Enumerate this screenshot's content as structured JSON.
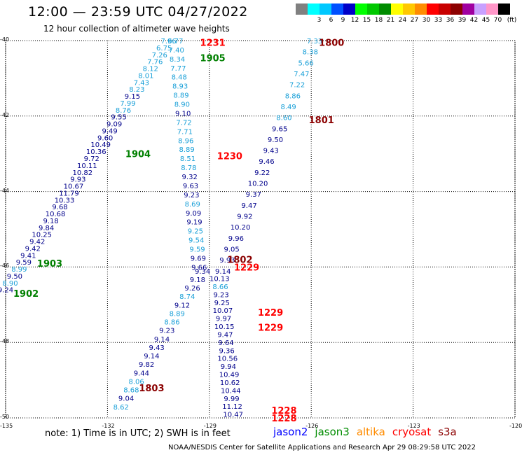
{
  "title": "12:00 — 23:59 UTC 04/27/2022",
  "subtitle": "12 hour collection of altimeter wave heights",
  "colorbar": {
    "unit": "(ft)",
    "bins": [
      {
        "label": "",
        "color": "#808080"
      },
      {
        "label": "3",
        "color": "#00ffff"
      },
      {
        "label": "6",
        "color": "#00c8ff"
      },
      {
        "label": "9",
        "color": "#0050ff"
      },
      {
        "label": "12",
        "color": "#0000c8"
      },
      {
        "label": "15",
        "color": "#00ff00"
      },
      {
        "label": "18",
        "color": "#00c800"
      },
      {
        "label": "21",
        "color": "#008c00"
      },
      {
        "label": "24",
        "color": "#ffff00"
      },
      {
        "label": "27",
        "color": "#ffc800"
      },
      {
        "label": "30",
        "color": "#ff8c00"
      },
      {
        "label": "33",
        "color": "#ff0000"
      },
      {
        "label": "36",
        "color": "#c80000"
      },
      {
        "label": "39",
        "color": "#8c0000"
      },
      {
        "label": "42",
        "color": "#a000a0"
      },
      {
        "label": "45",
        "color": "#c8a0ff"
      },
      {
        "label": "70",
        "color": "#ff96c8"
      },
      {
        "label": "",
        "color": "#000000"
      }
    ]
  },
  "axes": {
    "x_ticks": [
      "-135",
      "-132",
      "-129",
      "-126",
      "-123",
      "-120"
    ],
    "y_ticks": [
      "-40",
      "-42",
      "-44",
      "-46",
      "-48",
      "-50"
    ]
  },
  "satellites": [
    {
      "name": "jason2",
      "color": "#0000ff"
    },
    {
      "name": "jason3",
      "color": "#008c00"
    },
    {
      "name": "altika",
      "color": "#ff8c00"
    },
    {
      "name": "cryosat",
      "color": "#ff0000"
    },
    {
      "name": "s3a",
      "color": "#8c0000"
    }
  ],
  "colors": {
    "dark_blue": "#00008b",
    "light_blue": "#1aa0d8",
    "green": "#008000",
    "red": "#ff0000",
    "maroon": "#8b0000"
  },
  "tracks": [
    {
      "lon_start": -135.0,
      "lat_start": -46.6,
      "lon_end": -130.2,
      "lat_end": -40.0,
      "values": [
        {
          "v": "9.24",
          "c": "dark_blue"
        },
        {
          "v": "8.90",
          "c": "light_blue"
        },
        {
          "v": "9.50",
          "c": "dark_blue"
        },
        {
          "v": "8.99",
          "c": "light_blue"
        },
        {
          "v": "9.59",
          "c": "dark_blue"
        },
        {
          "v": "9.41",
          "c": "dark_blue"
        },
        {
          "v": "9.42",
          "c": "dark_blue"
        },
        {
          "v": "9.42",
          "c": "dark_blue"
        },
        {
          "v": "10.25",
          "c": "dark_blue"
        },
        {
          "v": "9.84",
          "c": "dark_blue"
        },
        {
          "v": "9.18",
          "c": "dark_blue"
        },
        {
          "v": "10.68",
          "c": "dark_blue"
        },
        {
          "v": "9.68",
          "c": "dark_blue"
        },
        {
          "v": "10.33",
          "c": "dark_blue"
        },
        {
          "v": "11.79",
          "c": "dark_blue"
        },
        {
          "v": "10.67",
          "c": "dark_blue"
        },
        {
          "v": "9.93",
          "c": "dark_blue"
        },
        {
          "v": "10.82",
          "c": "dark_blue"
        },
        {
          "v": "10.11",
          "c": "dark_blue"
        },
        {
          "v": "9.72",
          "c": "dark_blue"
        },
        {
          "v": "10.36",
          "c": "dark_blue"
        },
        {
          "v": "10.49",
          "c": "dark_blue"
        },
        {
          "v": "9.60",
          "c": "dark_blue"
        },
        {
          "v": "9.49",
          "c": "dark_blue"
        },
        {
          "v": "9.09",
          "c": "dark_blue"
        },
        {
          "v": "9.55",
          "c": "dark_blue"
        },
        {
          "v": "8.76",
          "c": "light_blue"
        },
        {
          "v": "7.99",
          "c": "light_blue"
        },
        {
          "v": "9.15",
          "c": "dark_blue"
        },
        {
          "v": "8.23",
          "c": "light_blue"
        },
        {
          "v": "7.43",
          "c": "light_blue"
        },
        {
          "v": "8.01",
          "c": "light_blue"
        },
        {
          "v": "8.12",
          "c": "light_blue"
        },
        {
          "v": "7.76",
          "c": "light_blue"
        },
        {
          "v": "7.26",
          "c": "light_blue"
        },
        {
          "v": "6.75",
          "c": "light_blue"
        },
        {
          "v": "7.96",
          "c": "light_blue"
        }
      ]
    },
    {
      "lon_start": -130.0,
      "lat_start": -40.0,
      "lon_end": -129.3,
      "lat_end": -46.0,
      "values": [
        {
          "v": "6.77",
          "c": "light_blue"
        },
        {
          "v": "7.40",
          "c": "light_blue"
        },
        {
          "v": "8.34",
          "c": "light_blue"
        },
        {
          "v": "7.77",
          "c": "light_blue"
        },
        {
          "v": "8.48",
          "c": "light_blue"
        },
        {
          "v": "8.93",
          "c": "light_blue"
        },
        {
          "v": "8.89",
          "c": "light_blue"
        },
        {
          "v": "8.90",
          "c": "light_blue"
        },
        {
          "v": "9.10",
          "c": "dark_blue"
        },
        {
          "v": "7.72",
          "c": "light_blue"
        },
        {
          "v": "7.71",
          "c": "light_blue"
        },
        {
          "v": "8.96",
          "c": "light_blue"
        },
        {
          "v": "8.89",
          "c": "light_blue"
        },
        {
          "v": "8.51",
          "c": "light_blue"
        },
        {
          "v": "8.78",
          "c": "light_blue"
        },
        {
          "v": "9.32",
          "c": "dark_blue"
        },
        {
          "v": "9.63",
          "c": "dark_blue"
        },
        {
          "v": "9.23",
          "c": "dark_blue"
        },
        {
          "v": "8.69",
          "c": "light_blue"
        },
        {
          "v": "9.09",
          "c": "dark_blue"
        },
        {
          "v": "9.19",
          "c": "dark_blue"
        },
        {
          "v": "9.25",
          "c": "light_blue"
        },
        {
          "v": "9.54",
          "c": "light_blue"
        },
        {
          "v": "9.59",
          "c": "light_blue"
        },
        {
          "v": "9.69",
          "c": "dark_blue"
        },
        {
          "v": "9.66",
          "c": "dark_blue"
        }
      ]
    },
    {
      "lon_start": -125.9,
      "lat_start": -40.0,
      "lon_end": -128.6,
      "lat_end": -46.1,
      "values": [
        {
          "v": "7.33",
          "c": "light_blue"
        },
        {
          "v": "8.38",
          "c": "light_blue"
        },
        {
          "v": "5.66",
          "c": "light_blue"
        },
        {
          "v": "7.47",
          "c": "light_blue"
        },
        {
          "v": "7.22",
          "c": "light_blue"
        },
        {
          "v": "8.86",
          "c": "light_blue"
        },
        {
          "v": "8.49",
          "c": "light_blue"
        },
        {
          "v": "8.60",
          "c": "light_blue"
        },
        {
          "v": "9.65",
          "c": "dark_blue"
        },
        {
          "v": "9.50",
          "c": "dark_blue"
        },
        {
          "v": "9.43",
          "c": "dark_blue"
        },
        {
          "v": "9.46",
          "c": "dark_blue"
        },
        {
          "v": "9.22",
          "c": "dark_blue"
        },
        {
          "v": "10.20",
          "c": "dark_blue"
        },
        {
          "v": "9.37",
          "c": "dark_blue"
        },
        {
          "v": "9.47",
          "c": "dark_blue"
        },
        {
          "v": "9.92",
          "c": "dark_blue"
        },
        {
          "v": "10.20",
          "c": "dark_blue"
        },
        {
          "v": "9.96",
          "c": "dark_blue"
        },
        {
          "v": "9.05",
          "c": "dark_blue"
        },
        {
          "v": "9.93",
          "c": "dark_blue"
        },
        {
          "v": "9.14",
          "c": "dark_blue"
        }
      ]
    },
    {
      "lon_start": -129.2,
      "lat_start": -46.1,
      "lon_end": -131.6,
      "lat_end": -49.7,
      "values": [
        {
          "v": "9.34",
          "c": "dark_blue"
        },
        {
          "v": "9.18",
          "c": "dark_blue"
        },
        {
          "v": "9.26",
          "c": "dark_blue"
        },
        {
          "v": "8.74",
          "c": "light_blue"
        },
        {
          "v": "9.12",
          "c": "dark_blue"
        },
        {
          "v": "8.89",
          "c": "light_blue"
        },
        {
          "v": "8.86",
          "c": "light_blue"
        },
        {
          "v": "9.23",
          "c": "dark_blue"
        },
        {
          "v": "9.14",
          "c": "dark_blue"
        },
        {
          "v": "9.43",
          "c": "dark_blue"
        },
        {
          "v": "9.14",
          "c": "dark_blue"
        },
        {
          "v": "9.82",
          "c": "dark_blue"
        },
        {
          "v": "9.44",
          "c": "dark_blue"
        },
        {
          "v": "8.06",
          "c": "light_blue"
        },
        {
          "v": "8.68",
          "c": "light_blue"
        },
        {
          "v": "9.04",
          "c": "dark_blue"
        },
        {
          "v": "8.62",
          "c": "light_blue"
        }
      ]
    },
    {
      "lon_start": -128.7,
      "lat_start": -46.3,
      "lon_end": -128.3,
      "lat_end": -49.9,
      "values": [
        {
          "v": "10.13",
          "c": "dark_blue"
        },
        {
          "v": "8.66",
          "c": "light_blue"
        },
        {
          "v": "9.23",
          "c": "dark_blue"
        },
        {
          "v": "9.25",
          "c": "dark_blue"
        },
        {
          "v": "10.07",
          "c": "dark_blue"
        },
        {
          "v": "9.97",
          "c": "dark_blue"
        },
        {
          "v": "10.15",
          "c": "dark_blue"
        },
        {
          "v": "9.47",
          "c": "dark_blue"
        },
        {
          "v": "9.64",
          "c": "dark_blue"
        },
        {
          "v": "9.36",
          "c": "dark_blue"
        },
        {
          "v": "10.56",
          "c": "dark_blue"
        },
        {
          "v": "9.94",
          "c": "dark_blue"
        },
        {
          "v": "10.49",
          "c": "dark_blue"
        },
        {
          "v": "10.62",
          "c": "dark_blue"
        },
        {
          "v": "10.44",
          "c": "dark_blue"
        },
        {
          "v": "9.99",
          "c": "dark_blue"
        },
        {
          "v": "11.12",
          "c": "dark_blue"
        },
        {
          "v": "10.47",
          "c": "dark_blue"
        }
      ]
    }
  ],
  "time_labels": [
    {
      "text": "1800",
      "c": "maroon",
      "lon": -125.4,
      "lat": -40.05
    },
    {
      "text": "1231",
      "c": "red",
      "lon": -128.9,
      "lat": -40.05
    },
    {
      "text": "1905",
      "c": "green",
      "lon": -128.9,
      "lat": -40.45
    },
    {
      "text": "1801",
      "c": "maroon",
      "lon": -125.7,
      "lat": -42.1
    },
    {
      "text": "1904",
      "c": "green",
      "lon": -131.1,
      "lat": -43.0
    },
    {
      "text": "1230",
      "c": "red",
      "lon": -128.4,
      "lat": -43.05
    },
    {
      "text": "1903",
      "c": "green",
      "lon": -133.7,
      "lat": -45.9
    },
    {
      "text": "1802",
      "c": "maroon",
      "lon": -128.1,
      "lat": -45.8
    },
    {
      "text": "1229",
      "c": "red",
      "lon": -127.9,
      "lat": -46.0
    },
    {
      "text": "1902",
      "c": "green",
      "lon": -134.4,
      "lat": -46.7
    },
    {
      "text": "1229",
      "c": "red",
      "lon": -127.2,
      "lat": -47.2
    },
    {
      "text": "1229",
      "c": "red",
      "lon": -127.2,
      "lat": -47.6
    },
    {
      "text": "1803",
      "c": "maroon",
      "lon": -130.7,
      "lat": -49.2
    },
    {
      "text": "1228",
      "c": "red",
      "lon": -126.8,
      "lat": -49.8
    },
    {
      "text": "1228",
      "c": "red",
      "lon": -126.8,
      "lat": -50.0
    }
  ],
  "note": "note:  1) Time is in UTC;  2) SWH is in feet",
  "credit": "NOAA/NESDIS Center for Satellite Applications and Research    Apr 29 08:29:58 UTC 2022"
}
